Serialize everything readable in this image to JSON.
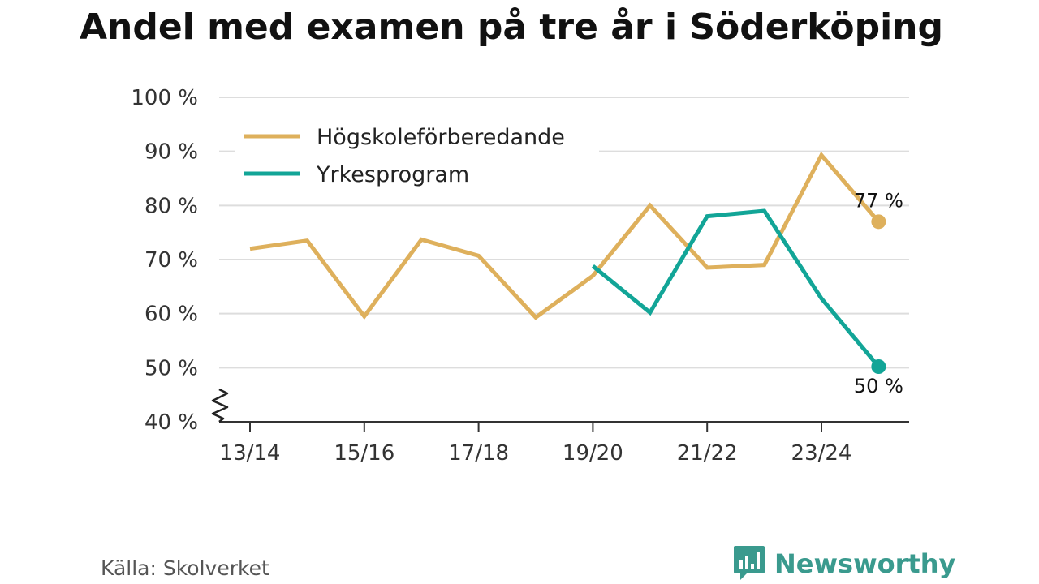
{
  "title": "Andel med examen på tre år i Söderköping",
  "source": "Källa: Skolverket",
  "brand": {
    "name": "Newsworthy",
    "icon": "newsworthy-logo-icon",
    "color": "#3a9a8e"
  },
  "chart_data": {
    "type": "line",
    "title": "Andel med examen på tre år i Söderköping",
    "x": [
      "13/14",
      "14/15",
      "15/16",
      "16/17",
      "17/18",
      "18/19",
      "19/20",
      "20/21",
      "21/22",
      "22/23",
      "23/24",
      "24/25"
    ],
    "x_tick_labels": [
      "13/14",
      "15/16",
      "17/18",
      "19/20",
      "21/22",
      "23/24"
    ],
    "y_ticks": [
      40,
      50,
      60,
      70,
      80,
      90,
      100
    ],
    "y_tick_suffix": " %",
    "ylim": [
      40,
      100
    ],
    "y_axis_break": true,
    "grid": true,
    "legend_position": "top-left",
    "series": [
      {
        "name": "Högskoleförberedande",
        "color": "#deb05c",
        "values": [
          72,
          73.5,
          59.5,
          73.7,
          70.7,
          59.3,
          67,
          80,
          68.5,
          69,
          89.3,
          77
        ],
        "end_label": "77 %"
      },
      {
        "name": "Yrkesprogram",
        "color": "#12a597",
        "values": [
          null,
          null,
          null,
          null,
          null,
          null,
          68.8,
          60.2,
          78,
          79,
          62.8,
          50.2
        ],
        "end_label": "50 %"
      }
    ]
  }
}
